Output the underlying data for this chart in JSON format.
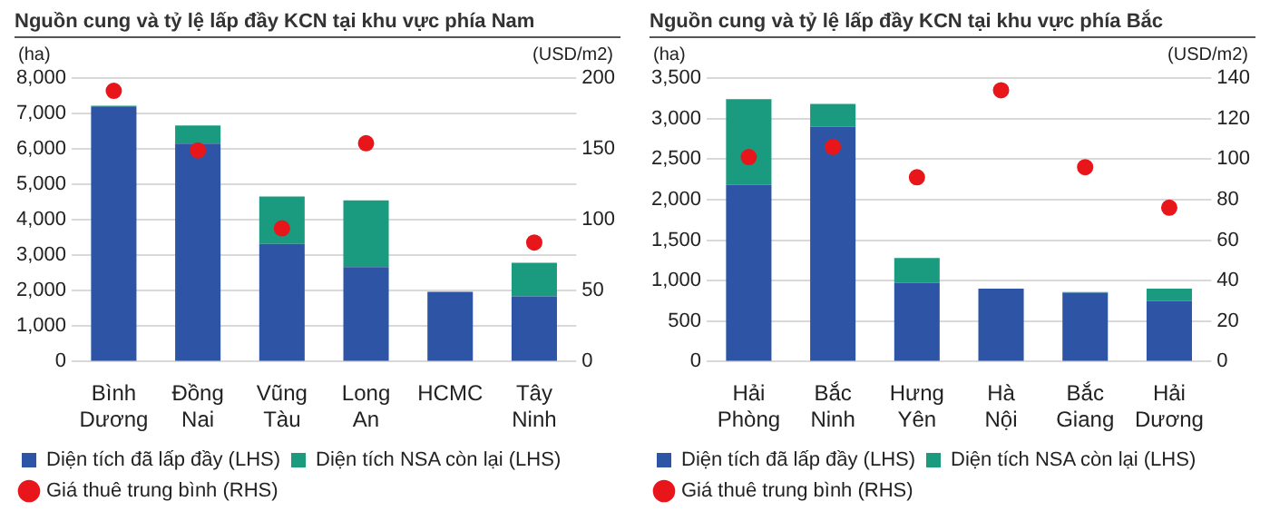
{
  "chart_data": [
    {
      "type": "bar",
      "title": "Nguồn cung và tỷ lệ lấp đầy KCN tại khu vực phía Nam",
      "ylabel": "(ha)",
      "y2label": "(USD/m2)",
      "categories": [
        "Bình Dương",
        "Đồng Nai",
        "Vũng Tàu",
        "Long An",
        "HCMC",
        "Tây Ninh"
      ],
      "stacked": true,
      "grid": "y",
      "legend": "bottom",
      "ylim": [
        0,
        8000
      ],
      "yticks": [
        {
          "value": 0,
          "label": "0"
        },
        {
          "value": 1000,
          "label": "1,000"
        },
        {
          "value": 2000,
          "label": "2,000"
        },
        {
          "value": 3000,
          "label": "3,000"
        },
        {
          "value": 4000,
          "label": "4,000"
        },
        {
          "value": 5000,
          "label": "5,000"
        },
        {
          "value": 6000,
          "label": "6,000"
        },
        {
          "value": 7000,
          "label": "7,000"
        },
        {
          "value": 8000,
          "label": "8,000"
        }
      ],
      "y2lim": [
        0,
        200
      ],
      "y2ticks": [
        0,
        50,
        100,
        150,
        200
      ],
      "series": [
        {
          "name": "Diện tích đã lấp đầy (LHS)",
          "color": "#2e55a5",
          "values": [
            7180,
            6150,
            3320,
            2670,
            1970,
            1840
          ]
        },
        {
          "name": "Diện tích NSA còn lại (LHS)",
          "color": "#1a9b7f",
          "values": [
            40,
            510,
            1340,
            1880,
            0,
            950
          ]
        },
        {
          "name": "Giá thuê trung bình (RHS)",
          "type": "scatter",
          "axis": "y2",
          "marker": "circle",
          "color": "#e8161b",
          "values": [
            191,
            149,
            94,
            154,
            null,
            84
          ]
        }
      ]
    },
    {
      "type": "bar",
      "title": "Nguồn cung và tỷ lệ lấp đầy KCN tại khu vực phía Bắc",
      "ylabel": "(ha)",
      "y2label": "(USD/m2)",
      "categories": [
        "Hải Phòng",
        "Bắc Ninh",
        "Hưng Yên",
        "Hà Nội",
        "Bắc Giang",
        "Hải Dương"
      ],
      "stacked": true,
      "grid": "y",
      "legend": "bottom",
      "ylim": [
        0,
        3500
      ],
      "yticks": [
        {
          "value": 0,
          "label": "0"
        },
        {
          "value": 500,
          "label": "500"
        },
        {
          "value": 1000,
          "label": "1,000"
        },
        {
          "value": 1500,
          "label": "1,500"
        },
        {
          "value": 2000,
          "label": "2,000"
        },
        {
          "value": 2500,
          "label": "2,500"
        },
        {
          "value": 3000,
          "label": "3,000"
        },
        {
          "value": 3500,
          "label": "3,500"
        }
      ],
      "y2lim": [
        0,
        140
      ],
      "y2ticks": [
        0,
        20,
        40,
        60,
        80,
        100,
        120,
        140
      ],
      "series": [
        {
          "name": "Diện tích đã lấp đầy (LHS)",
          "color": "#2e55a5",
          "values": [
            2180,
            2900,
            970,
            900,
            850,
            750
          ]
        },
        {
          "name": "Diện tích NSA còn lại (LHS)",
          "color": "#1a9b7f",
          "values": [
            1060,
            280,
            310,
            0,
            10,
            150
          ]
        },
        {
          "name": "Giá thuê trung bình (RHS)",
          "type": "scatter",
          "axis": "y2",
          "marker": "circle",
          "color": "#e8161b",
          "values": [
            101,
            106,
            91,
            134,
            96,
            76
          ]
        }
      ]
    }
  ]
}
